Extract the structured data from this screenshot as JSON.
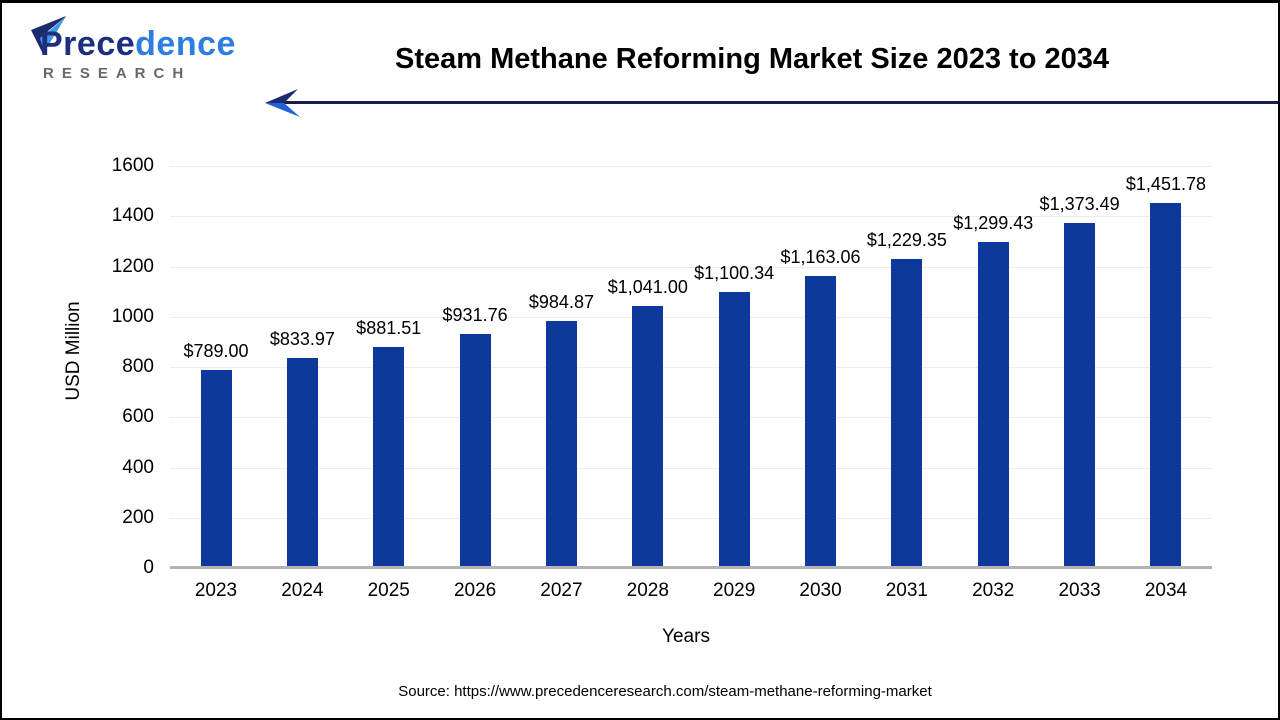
{
  "brand": {
    "name_part1": "Prece",
    "name_part2": "dence",
    "subtitle": "RESEARCH"
  },
  "header": {
    "title": "Steam Methane Reforming Market Size 2023 to 2034"
  },
  "chart_data": {
    "type": "bar",
    "title": "Steam Methane Reforming Market Size 2023 to 2034",
    "categories": [
      "2023",
      "2024",
      "2025",
      "2026",
      "2027",
      "2028",
      "2029",
      "2030",
      "2031",
      "2032",
      "2033",
      "2034"
    ],
    "values": [
      789.0,
      833.97,
      881.51,
      931.76,
      984.87,
      1041.0,
      1100.34,
      1163.06,
      1229.35,
      1299.43,
      1373.49,
      1451.78
    ],
    "value_labels": [
      "$789.00",
      "$833.97",
      "$881.51",
      "$931.76",
      "$984.87",
      "$1,041.00",
      "$1,100.34",
      "$1,163.06",
      "$1,229.35",
      "$1,299.43",
      "$1,373.49",
      "$1,451.78"
    ],
    "xlabel": "Years",
    "ylabel": "USD Million",
    "ylim": [
      0,
      1600
    ],
    "yticks": [
      0,
      200,
      400,
      600,
      800,
      1000,
      1200,
      1400,
      1600
    ],
    "grid": true,
    "legend": "none",
    "bar_color": "#0d399c"
  },
  "footer": {
    "source": "Source: https://www.precedenceresearch.com/steam-methane-reforming-market"
  },
  "colors": {
    "bar": "#0d399c",
    "arrow_dark": "#1c2a6e",
    "arrow_blue": "#1f63d6",
    "line_navy": "#171c52",
    "grid": "#ececec",
    "axis_line": "#b3b3b3",
    "brand_dark": "#1e2f7d",
    "brand_light": "#2e7de0",
    "brand_gray": "#686868"
  }
}
